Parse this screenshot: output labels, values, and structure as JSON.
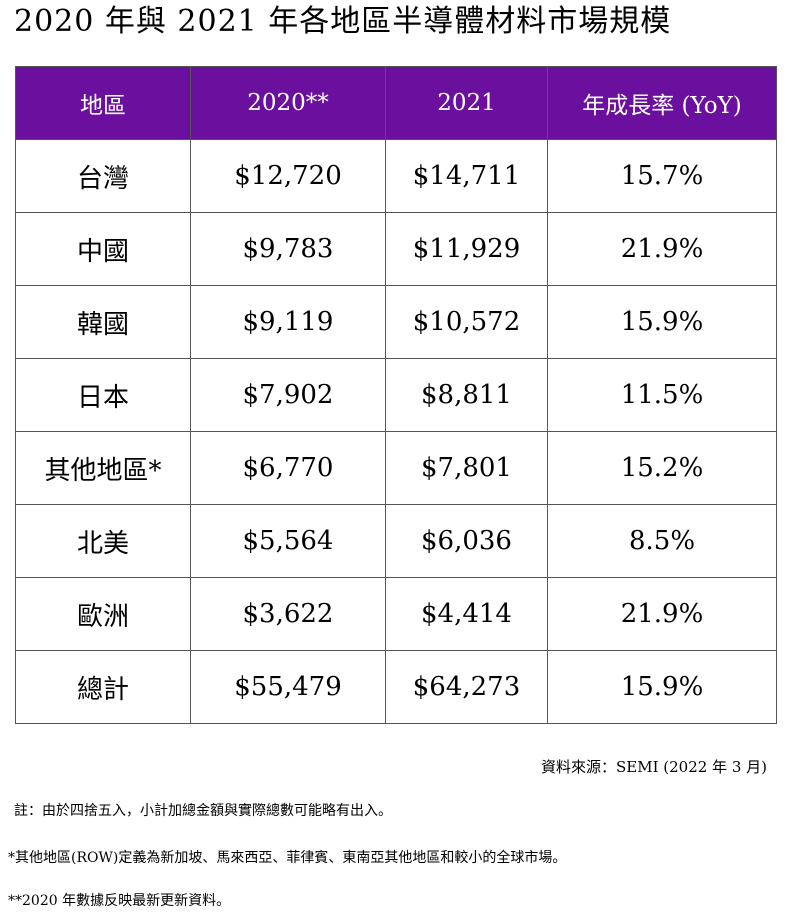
{
  "title": "2020 年與 2021 年各地區半導體材料市場規模",
  "table": {
    "headers": [
      "地區",
      "2020**",
      "2021",
      "年成長率 (YoY)"
    ],
    "rows": [
      [
        "台灣",
        "$12,720",
        "$14,711",
        "15.7%"
      ],
      [
        "中國",
        "$9,783",
        "$11,929",
        "21.9%"
      ],
      [
        "韓國",
        "$9,119",
        "$10,572",
        "15.9%"
      ],
      [
        "日本",
        "$7,902",
        "$8,811",
        "11.5%"
      ],
      [
        "其他地區*",
        "$6,770",
        "$7,801",
        "15.2%"
      ],
      [
        "北美",
        "$5,564",
        "$6,036",
        "8.5%"
      ],
      [
        "歐洲",
        "$3,622",
        "$4,414",
        "21.9%"
      ],
      [
        "總計",
        "$55,479",
        "$64,273",
        "15.9%"
      ]
    ]
  },
  "source": "資料來源：SEMI (2022 年 3 月)",
  "notes": [
    "註：由於四捨五入，小計加總金額與實際總數可能略有出入。",
    "*其他地區(ROW)定義為新加坡、馬來西亞、菲律賓、東南亞其他地區和較小的全球市場。",
    "**2020 年數據反映最新更新資料。"
  ],
  "colors": {
    "header_bg": "#6a0f9e",
    "header_text": "#ffffff",
    "border": "#555555"
  }
}
